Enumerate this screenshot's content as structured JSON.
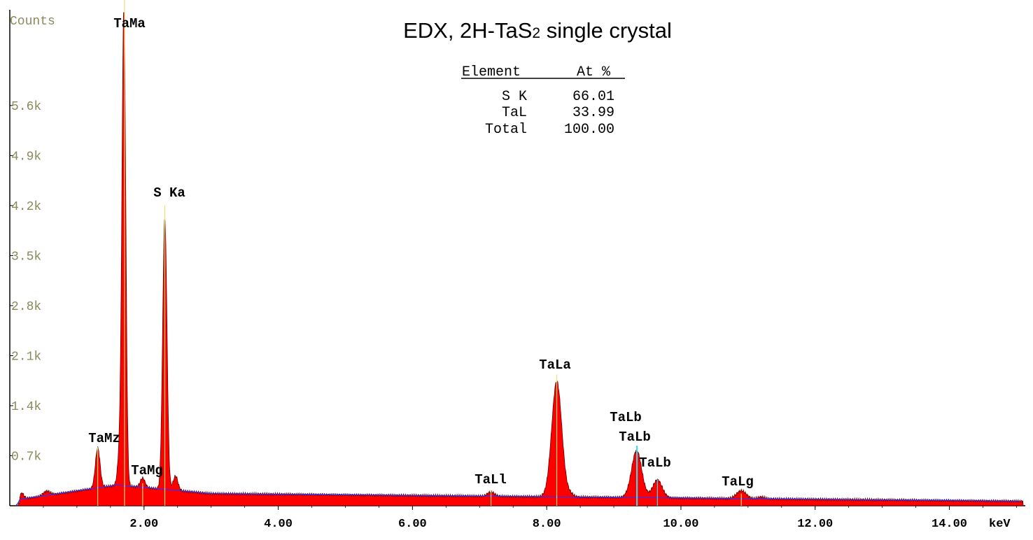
{
  "chart_data": {
    "type": "area",
    "title": "EDX, 2H-TaS",
    "title_subscript": "2",
    "title_suffix": " single crystal",
    "ylabel": "Counts",
    "xlabel": "keV",
    "xlim": [
      0,
      15.1
    ],
    "ylim": [
      0,
      6900
    ],
    "x_ticks": [
      "2.00",
      "4.00",
      "6.00",
      "8.00",
      "10.00",
      "12.00",
      "14.00"
    ],
    "y_ticks": [
      "0.7k",
      "1.4k",
      "2.1k",
      "2.8k",
      "3.5k",
      "4.2k",
      "4.9k",
      "5.6k"
    ],
    "fill_color": "#ff0000",
    "background_color": "#3030ff",
    "peak_line_color": "#e8e070",
    "peak_line_color_alt": "#40d8e8",
    "peaks": [
      {
        "label": "TaMz",
        "energy": 1.31,
        "counts": 780
      },
      {
        "label": "TaMa",
        "energy": 1.71,
        "counts": 6900
      },
      {
        "label": "TaMg",
        "energy": 1.98,
        "counts": 300
      },
      {
        "label": "S Ka",
        "energy": 2.31,
        "counts": 4000
      },
      {
        "label": "TaLl",
        "energy": 7.17,
        "counts": 200
      },
      {
        "label": "TaLa",
        "energy": 8.15,
        "counts": 1750
      },
      {
        "label": "TaLb",
        "energy": 9.34,
        "counts": 800
      },
      {
        "label": "TaLb",
        "energy": 9.35,
        "counts": 800
      },
      {
        "label": "TaLb",
        "energy": 9.65,
        "counts": 350
      },
      {
        "label": "TaLg",
        "energy": 10.9,
        "counts": 160
      }
    ],
    "table": {
      "headers": [
        "Element",
        "At %"
      ],
      "rows": [
        [
          "S K",
          "66.01"
        ],
        [
          "TaL",
          "33.99"
        ],
        [
          "Total",
          "100.00"
        ]
      ]
    }
  }
}
